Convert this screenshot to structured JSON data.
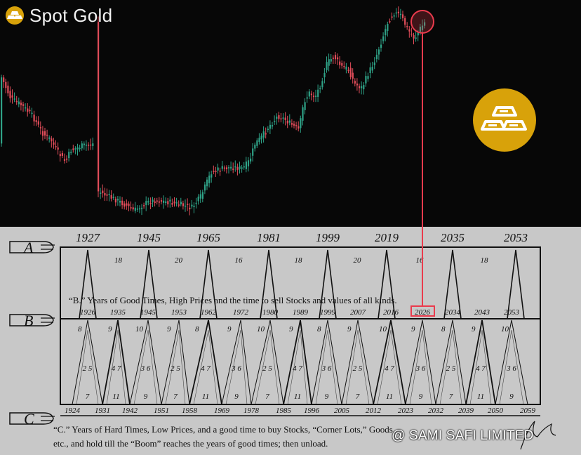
{
  "header": {
    "title": "Spot Gold",
    "icon": "gold-logo-icon"
  },
  "badge": {
    "icon": "gold-bars-icon"
  },
  "colors": {
    "background": "#070707",
    "up_candle": "#2fa287",
    "down_candle": "#e24d5a",
    "accent_gold": "#d8a20a",
    "marker": "#ea3b4d",
    "paper": "#c8c8c8",
    "ink": "#111111"
  },
  "benner": {
    "row_a_years": [
      "1927",
      "1945",
      "1965",
      "1981",
      "1999",
      "2019",
      "2035",
      "2053"
    ],
    "row_a_intervals": [
      "18",
      "20",
      "16",
      "18",
      "20",
      "16",
      "18"
    ],
    "row_b_caption": "“B.” Years of Good Times, High Prices and the time to sell Stocks and values of all kinds.",
    "row_b_years": [
      "1926",
      "1935",
      "1945",
      "1953",
      "1962",
      "1972",
      "1980",
      "1989",
      "1999",
      "2007",
      "2016",
      "2026",
      "2034",
      "2043",
      "2053"
    ],
    "row_b_highlight": "2026",
    "row_c_years": [
      "1924",
      "1931",
      "1942",
      "1951",
      "1958",
      "1969",
      "1978",
      "1985",
      "1996",
      "2005",
      "2012",
      "2023",
      "2032",
      "2039",
      "2050",
      "2059"
    ],
    "cycle_upper": [
      "8",
      "9",
      "10",
      "9",
      "8",
      "9",
      "10",
      "9",
      "8",
      "9",
      "10",
      "9",
      "8",
      "9",
      "10"
    ],
    "cycle_middle": [
      "2 5",
      "4 7",
      "3 6",
      "2 5",
      "4 7",
      "3 6",
      "2 5",
      "4 7",
      "3 6",
      "2 5",
      "4 7",
      "3 6",
      "2 5",
      "4 7",
      "3 6"
    ],
    "cycle_lower": [
      "7",
      "11",
      "9",
      "7",
      "11",
      "9",
      "7",
      "11",
      "9",
      "7",
      "11",
      "9",
      "7",
      "11",
      "9"
    ],
    "label_a": "A",
    "label_b": "B",
    "label_c": "C",
    "row_c_caption_1": "“C.”   Years of Hard Times, Low Prices, and a good time to buy Stocks, “Corner Lots,” Goods,",
    "row_c_caption_2": "etc., and hold till  the “Boom” reaches the years of good times; then unload."
  },
  "watermark": "@ SAMI SAFI LIMITED"
}
